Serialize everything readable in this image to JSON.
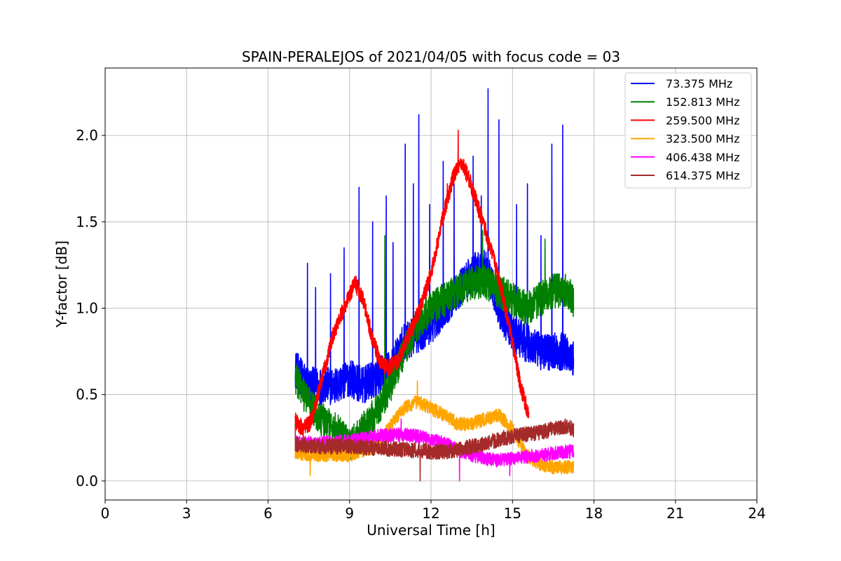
{
  "chart_data": {
    "type": "line",
    "title": "SPAIN-PERALEJOS of 2021/04/05 with focus code = 03",
    "xlabel": "Universal Time [h]",
    "ylabel": "Y-factor [dB]",
    "xlim": [
      0,
      24
    ],
    "ylim": [
      -0.11,
      2.39
    ],
    "xticks": [
      0,
      3,
      6,
      9,
      12,
      15,
      18,
      21,
      24
    ],
    "xtick_labels": [
      "0",
      "3",
      "6",
      "9",
      "12",
      "15",
      "18",
      "21",
      "24"
    ],
    "yticks": [
      0.0,
      0.5,
      1.0,
      1.5,
      2.0
    ],
    "ytick_labels": [
      "0.0",
      "0.5",
      "1.0",
      "1.5",
      "2.0"
    ],
    "grid": true,
    "legend_position": "top-right",
    "series": [
      {
        "name": " 73.375 MHz",
        "color": "#0000ff",
        "noise": 0.22,
        "x": [
          7.0,
          7.5,
          8.0,
          8.5,
          9.0,
          9.5,
          10.0,
          10.5,
          11.0,
          11.5,
          12.0,
          12.5,
          13.0,
          13.5,
          14.0,
          14.5,
          15.0,
          15.5,
          16.0,
          16.5,
          17.0,
          17.25
        ],
        "y": [
          0.65,
          0.55,
          0.55,
          0.55,
          0.6,
          0.55,
          0.6,
          0.65,
          0.8,
          0.85,
          0.9,
          1.0,
          1.1,
          1.2,
          1.25,
          1.0,
          0.85,
          0.8,
          0.75,
          0.75,
          0.75,
          0.7
        ],
        "spikes": [
          [
            7.45,
            1.26
          ],
          [
            7.75,
            1.12
          ],
          [
            8.3,
            1.2
          ],
          [
            8.8,
            1.35
          ],
          [
            9.35,
            1.7
          ],
          [
            9.85,
            1.5
          ],
          [
            10.35,
            1.65
          ],
          [
            10.6,
            1.38
          ],
          [
            11.05,
            1.95
          ],
          [
            11.35,
            1.72
          ],
          [
            11.55,
            2.12
          ],
          [
            11.95,
            1.6
          ],
          [
            12.45,
            1.85
          ],
          [
            12.85,
            1.72
          ],
          [
            13.55,
            1.88
          ],
          [
            13.85,
            1.65
          ],
          [
            14.1,
            2.27
          ],
          [
            14.5,
            2.09
          ],
          [
            15.15,
            1.6
          ],
          [
            15.55,
            1.72
          ],
          [
            16.05,
            1.42
          ],
          [
            16.45,
            1.95
          ],
          [
            16.85,
            2.06
          ]
        ]
      },
      {
        "name": "152.813 MHz",
        "color": "#008000",
        "noise": 0.2,
        "x": [
          7.0,
          7.5,
          8.0,
          8.5,
          9.0,
          9.5,
          10.0,
          10.5,
          11.0,
          11.5,
          12.0,
          12.5,
          13.0,
          13.5,
          14.0,
          14.5,
          15.0,
          15.5,
          16.0,
          16.5,
          17.0,
          17.25
        ],
        "y": [
          0.6,
          0.45,
          0.35,
          0.3,
          0.2,
          0.3,
          0.4,
          0.55,
          0.75,
          0.9,
          1.0,
          1.05,
          1.1,
          1.15,
          1.15,
          1.1,
          1.05,
          1.0,
          1.05,
          1.1,
          1.1,
          1.05
        ],
        "spikes": [
          [
            10.3,
            1.42
          ],
          [
            13.9,
            1.45
          ],
          [
            16.2,
            1.4
          ]
        ]
      },
      {
        "name": "259.500 MHz",
        "color": "#ff0000",
        "noise": 0.1,
        "x": [
          7.0,
          7.3,
          7.6,
          8.0,
          8.4,
          8.8,
          9.2,
          9.5,
          9.8,
          10.1,
          10.4,
          10.8,
          11.2,
          11.6,
          12.0,
          12.4,
          12.8,
          13.1,
          13.4,
          13.8,
          14.2,
          14.6,
          15.0,
          15.3,
          15.6
        ],
        "y": [
          0.35,
          0.3,
          0.35,
          0.6,
          0.85,
          1.0,
          1.15,
          1.05,
          0.85,
          0.7,
          0.65,
          0.7,
          0.85,
          1.0,
          1.2,
          1.5,
          1.75,
          1.85,
          1.75,
          1.55,
          1.35,
          1.1,
          0.8,
          0.55,
          0.38
        ],
        "spikes": [
          [
            13.0,
            2.03
          ],
          [
            12.6,
            1.72
          ]
        ]
      },
      {
        "name": "323.500 MHz",
        "color": "#ffa500",
        "noise": 0.08,
        "x": [
          7.0,
          8.0,
          9.0,
          10.0,
          10.5,
          11.0,
          11.5,
          12.0,
          12.5,
          13.0,
          13.5,
          14.0,
          14.5,
          15.0,
          15.5,
          16.0,
          16.5,
          17.0,
          17.25
        ],
        "y": [
          0.16,
          0.15,
          0.15,
          0.2,
          0.32,
          0.42,
          0.46,
          0.42,
          0.38,
          0.33,
          0.33,
          0.36,
          0.38,
          0.3,
          0.15,
          0.1,
          0.08,
          0.08,
          0.08
        ],
        "spikes": [
          [
            7.55,
            0.03
          ],
          [
            11.5,
            0.58
          ]
        ]
      },
      {
        "name": "406.438 MHz",
        "color": "#ff00ff",
        "noise": 0.08,
        "x": [
          7.0,
          8.0,
          9.0,
          10.0,
          11.0,
          11.5,
          12.0,
          12.5,
          13.0,
          13.5,
          14.0,
          14.5,
          15.0,
          15.5,
          16.0,
          16.5,
          17.0,
          17.25
        ],
        "y": [
          0.22,
          0.22,
          0.23,
          0.26,
          0.27,
          0.26,
          0.24,
          0.22,
          0.18,
          0.15,
          0.13,
          0.12,
          0.13,
          0.14,
          0.15,
          0.16,
          0.17,
          0.17
        ],
        "spikes": [
          [
            10.9,
            0.36
          ],
          [
            13.05,
            0.0
          ],
          [
            14.9,
            0.03
          ]
        ]
      },
      {
        "name": "614.375 MHz",
        "color": "#a52a2a",
        "noise": 0.09,
        "x": [
          7.0,
          8.0,
          9.0,
          10.0,
          11.0,
          12.0,
          12.5,
          13.0,
          13.5,
          14.0,
          14.5,
          15.0,
          15.5,
          16.0,
          16.5,
          17.0,
          17.25
        ],
        "y": [
          0.21,
          0.2,
          0.2,
          0.19,
          0.18,
          0.17,
          0.17,
          0.18,
          0.2,
          0.22,
          0.24,
          0.26,
          0.27,
          0.28,
          0.3,
          0.32,
          0.3
        ],
        "spikes": [
          [
            11.6,
            0.0
          ],
          [
            7.0,
            0.33
          ]
        ]
      }
    ]
  }
}
